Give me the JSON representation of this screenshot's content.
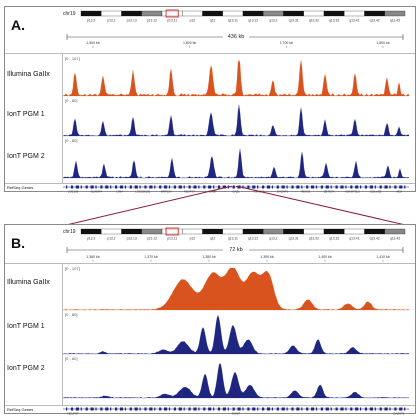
{
  "panelA": {
    "label": "A.",
    "ideogram_text": "chr19",
    "band_labels": [
      "p13.3",
      "p13.2",
      "p13.13",
      "p13.12",
      "p13.11",
      "p12",
      "q12",
      "q13.11",
      "q13.12",
      "q13.2",
      "q13.31",
      "q13.32",
      "q13.33",
      "q13.41",
      "q13.42",
      "q13.43"
    ],
    "scale_text": "436 kb",
    "coord_labels": [
      "1,500 kb",
      "1,600 kb",
      "1,700 kb",
      "1,800 kb"
    ],
    "track_range_top": "[0 - 107]",
    "track_range_ion": "[0 - 80]",
    "tracks": [
      {
        "label": "Illumina GaIIx",
        "color": "#d9531e"
      },
      {
        "label": "IonT PGM 1",
        "color": "#1f2680"
      },
      {
        "label": "IonT PGM 2",
        "color": "#1f2680"
      }
    ],
    "genes_label": "RefSeq Genes",
    "gene_names": [
      "LOC100",
      "SCAMP4",
      "LTB4",
      "LOC100131",
      "MRPL54",
      "NDUFS7",
      "GAMT",
      "OAZ1",
      "LINGO3",
      "DAZAP1",
      "REXO1",
      "ZBTB7A",
      "ADAMTSL5",
      "C19orf25",
      "AES"
    ]
  },
  "panelB": {
    "label": "B.",
    "ideogram_text": "chr19",
    "band_labels": [
      "p13.3",
      "p13.2",
      "p13.13",
      "p13.12",
      "p13.11",
      "p12",
      "q12",
      "q13.11",
      "q13.12",
      "q13.2",
      "q13.31",
      "q13.32",
      "q13.33",
      "q13.41",
      "q13.42",
      "q13.43"
    ],
    "scale_text": "72 kb",
    "coord_labels": [
      "1,360 kb",
      "1,370 kb",
      "1,380 kb",
      "1,390 kb",
      "1,400 kb",
      "1,410 kb"
    ],
    "track_range_top": "[0 - 107]",
    "track_range_ion": "[0 - 80]",
    "tracks": [
      {
        "label": "Illumina GaIIx",
        "color": "#d9531e"
      },
      {
        "label": "IonT PGM 1",
        "color": "#1f2680"
      },
      {
        "label": "IonT PGM 2",
        "color": "#1f2680"
      }
    ],
    "genes_label": "RefSeq Genes",
    "gene_names": [
      "NDUFS7",
      "GAMT",
      "DAZAP1"
    ]
  },
  "colors": {
    "illumina": "#d9531e",
    "ion": "#1f2680",
    "zoom_line": "#8b1a3a",
    "border": "#888888"
  }
}
